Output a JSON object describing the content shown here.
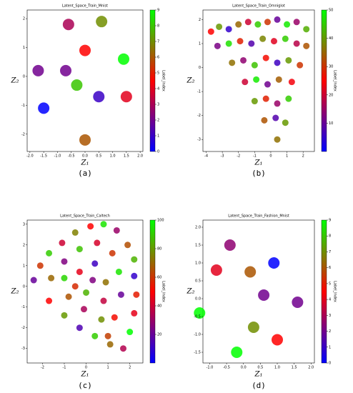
{
  "chart_data": [
    {
      "type": "scatter",
      "title": "Latent_Space_Train_Mnist",
      "xlabel": "Z₁",
      "ylabel": "Z₂",
      "caption": "(a)",
      "colormap": "brg",
      "xlim": [
        -2.1,
        2.1
      ],
      "ylim": [
        -2.6,
        2.3
      ],
      "xticks": [
        {
          "value": -2,
          "label": "-2.0"
        },
        {
          "value": -1.5,
          "label": "-1.5"
        },
        {
          "value": -1,
          "label": "-1.0"
        },
        {
          "value": -0.5,
          "label": "-0.5"
        },
        {
          "value": 0,
          "label": "0.0"
        },
        {
          "value": 0.5,
          "label": "0.5"
        },
        {
          "value": 1,
          "label": "1.0"
        },
        {
          "value": 1.5,
          "label": "1.5"
        },
        {
          "value": 2,
          "label": "2.0"
        }
      ],
      "yticks": [
        -2,
        -1,
        0,
        1,
        2
      ],
      "colorbar": {
        "label": "Label_Index",
        "lim": [
          0,
          9
        ],
        "ticks": [
          0,
          1,
          2,
          3,
          4,
          5,
          6,
          7,
          8,
          9
        ]
      },
      "x": [
        -0.6,
        0.6,
        -1.7,
        -0.7,
        0.0,
        1.4,
        -0.3,
        -1.5,
        0.5,
        1.5,
        0.0
      ],
      "y": [
        1.8,
        1.9,
        0.2,
        0.2,
        0.9,
        0.6,
        -0.3,
        -1.1,
        -0.7,
        -0.7,
        -2.2
      ],
      "labels": [
        3,
        7,
        2,
        2,
        4.5,
        9,
        8,
        0,
        1,
        4,
        6
      ]
    },
    {
      "type": "scatter",
      "title": "Latent_Space_Train_Omniglot",
      "xlabel": "Z₁",
      "ylabel": "Z₂",
      "caption": "(b)",
      "colormap": "brg",
      "xlim": [
        -4.2,
        2.7
      ],
      "ylim": [
        -3.5,
        2.4
      ],
      "xticks": [
        -4,
        -3,
        -2,
        -1,
        0,
        1,
        2
      ],
      "yticks": [
        -3,
        -2,
        -1,
        0,
        1,
        2
      ],
      "colorbar": {
        "label": "Label_Index",
        "lim": [
          0,
          50
        ],
        "ticks": [
          10,
          20,
          30,
          40,
          50
        ]
      },
      "x": [
        -3.7,
        -3.2,
        -2.6,
        -2,
        -1.4,
        -0.8,
        -0.2,
        0.4,
        1.0,
        1.6,
        2.2,
        -3.3,
        -2.6,
        -1.9,
        -1.2,
        -0.5,
        0.2,
        0.9,
        1.6,
        2.2,
        -2.4,
        -1.7,
        -1.0,
        -0.3,
        0.4,
        1.1,
        1.8,
        -1.6,
        -0.9,
        -0.2,
        0.5,
        1.3,
        -1.0,
        -0.3,
        0.4,
        1.1,
        -0.4,
        0.3,
        0.9,
        0.4
      ],
      "y": [
        1.5,
        1.7,
        1.6,
        1.8,
        1.9,
        1.8,
        1.9,
        2.0,
        1.8,
        1.9,
        1.6,
        0.9,
        1.0,
        1.1,
        1.0,
        1.2,
        1.1,
        1.2,
        1.0,
        0.9,
        0.2,
        0.3,
        0.1,
        0.4,
        0.2,
        0.3,
        0.1,
        -0.6,
        -0.5,
        -0.7,
        -0.5,
        -0.6,
        -1.4,
        -1.3,
        -1.5,
        -1.3,
        -2.2,
        -2.1,
        -2.3,
        -3.0
      ],
      "labels": [
        25,
        40,
        5,
        35,
        20,
        45,
        30,
        10,
        48,
        15,
        42,
        12,
        47,
        28,
        8,
        38,
        22,
        45,
        18,
        33,
        36,
        14,
        44,
        26,
        6,
        40,
        30,
        20,
        48,
        11,
        34,
        24,
        40,
        28,
        15,
        45,
        33,
        8,
        40,
        36
      ]
    },
    {
      "type": "scatter",
      "title": "Latent_Space_Train_Caltech",
      "xlabel": "Z₁",
      "ylabel": "Z₂",
      "caption": "(c)",
      "colormap": "brg",
      "xlim": [
        -2.7,
        2.6
      ],
      "ylim": [
        -3.7,
        3.2
      ],
      "xticks": [
        -2,
        -1,
        0,
        1,
        2
      ],
      "yticks": [
        -3,
        -2,
        -1,
        0,
        1,
        2,
        3
      ],
      "colorbar": {
        "label": "Label_Index",
        "lim": [
          0,
          100
        ],
        "ticks": [
          20,
          40,
          60,
          80,
          100
        ]
      },
      "x": [
        -2.4,
        -2.1,
        -1.7,
        -1.1,
        -0.5,
        0.2,
        0.8,
        1.4,
        1.9,
        2.2,
        2.2,
        2.3,
        2.2,
        2.0,
        1.7,
        1.1,
        0.4,
        -0.3,
        -1.0,
        -1.7,
        -1.6,
        -1.0,
        -0.3,
        0.5,
        1.2,
        1.5,
        1.6,
        1.3,
        0.7,
        -0.1,
        -0.8,
        -1.0,
        -0.3,
        0.4,
        0.9,
        0.8,
        0.0,
        -0.5,
        0.3,
        1.0
      ],
      "y": [
        0.3,
        1.0,
        1.6,
        2.1,
        2.6,
        2.9,
        3.0,
        2.7,
        2.0,
        1.3,
        0.5,
        -0.4,
        -1.3,
        -2.2,
        -3.0,
        -2.8,
        -2.4,
        -2.0,
        -1.4,
        -0.7,
        0.4,
        1.2,
        1.8,
        2.1,
        1.6,
        0.7,
        -0.4,
        -1.5,
        -1.6,
        -1.1,
        -0.5,
        0.4,
        0.7,
        1.1,
        0.2,
        -0.7,
        -0.3,
        0.0,
        0.3,
        -2.4
      ],
      "labels": [
        20,
        60,
        90,
        40,
        75,
        50,
        95,
        30,
        65,
        85,
        10,
        55,
        45,
        100,
        35,
        70,
        90,
        15,
        80,
        50,
        70,
        25,
        88,
        42,
        60,
        95,
        20,
        52,
        78,
        33,
        66,
        92,
        45,
        12,
        72,
        38,
        85,
        58,
        25,
        62
      ]
    },
    {
      "type": "scatter",
      "title": "Latent_Space_Train_Fashion_Mnist",
      "xlabel": "Z₁",
      "ylabel": "Z₂",
      "caption": "(d)",
      "colormap": "brg",
      "xlim": [
        -1.2,
        2.1
      ],
      "ylim": [
        -1.8,
        2.2
      ],
      "xticks": [
        {
          "value": -1,
          "label": "-1.0"
        },
        {
          "value": -0.5,
          "label": "-0.5"
        },
        {
          "value": 0,
          "label": "0.0"
        },
        {
          "value": 0.5,
          "label": "0.5"
        },
        {
          "value": 1,
          "label": "1.0"
        },
        {
          "value": 1.5,
          "label": "1.5"
        },
        {
          "value": 2,
          "label": "2.0"
        }
      ],
      "yticks": [
        {
          "value": -1.5,
          "label": "-1.5"
        },
        {
          "value": -1,
          "label": "-1.0"
        },
        {
          "value": -0.5,
          "label": "-0.5"
        },
        {
          "value": 0,
          "label": "0.0"
        },
        {
          "value": 0.5,
          "label": "0.5"
        },
        {
          "value": 1,
          "label": "1.0"
        },
        {
          "value": 1.5,
          "label": "1.5"
        },
        {
          "value": 2,
          "label": "2.0"
        }
      ],
      "colorbar": {
        "label": "Label_Index",
        "lim": [
          0,
          9
        ],
        "ticks": [
          0,
          1,
          2,
          3,
          4,
          5,
          6,
          7,
          8,
          9
        ]
      },
      "x": [
        -0.4,
        0.9,
        -0.8,
        0.2,
        0.6,
        1.6,
        -1.3,
        0.3,
        1.0,
        -0.2
      ],
      "y": [
        1.5,
        1.0,
        0.8,
        0.75,
        0.1,
        -0.1,
        -0.4,
        -0.8,
        -1.15,
        -1.5
      ],
      "labels": [
        2.5,
        0,
        4,
        6,
        2,
        2,
        9,
        7,
        4.5,
        9
      ]
    }
  ]
}
